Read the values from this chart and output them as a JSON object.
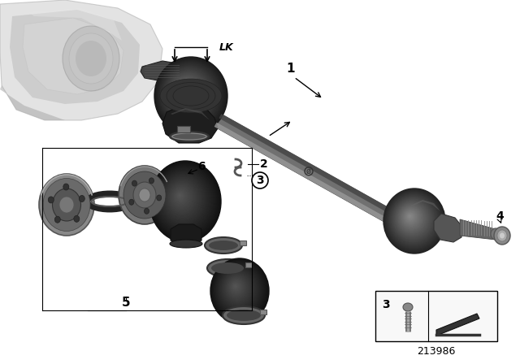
{
  "background_color": "#ffffff",
  "diagram_number": "213986",
  "fig_width": 6.4,
  "fig_height": 4.48,
  "dpi": 100,
  "shaft_color": "#888888",
  "shaft_dark": "#555555",
  "joint_dark": "#2a2a2a",
  "joint_mid": "#555555",
  "joint_light": "#aaaaaa",
  "diff_light": "#d4d4d4",
  "diff_mid": "#b8b8b8",
  "clamp_color": "#666666",
  "label_color": "#000000"
}
